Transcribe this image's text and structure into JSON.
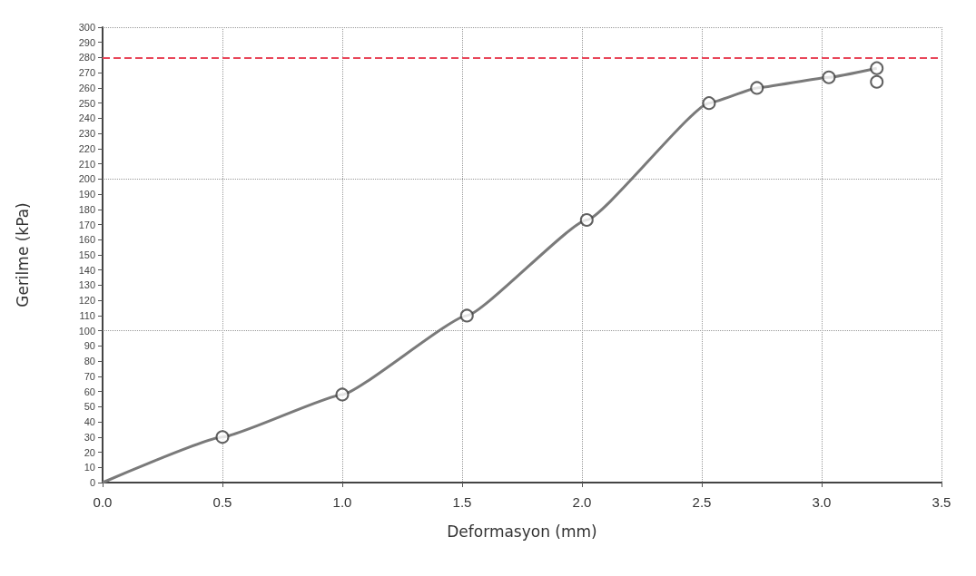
{
  "chart_data": {
    "type": "line",
    "xlabel": "Deformasyon (mm)",
    "ylabel": "Gerilme (kPa)",
    "xlim": [
      0,
      3.5
    ],
    "xticks": [
      {
        "value": 0,
        "label": "0.0"
      },
      {
        "value": 0.5,
        "label": "0.5"
      },
      {
        "value": 1,
        "label": "1.0"
      },
      {
        "value": 1.5,
        "label": "1.5"
      },
      {
        "value": 2,
        "label": "2.0"
      },
      {
        "value": 2.5,
        "label": "2.5"
      },
      {
        "value": 3,
        "label": "3.0"
      },
      {
        "value": 3.5,
        "label": "3.5"
      }
    ],
    "ylim": [
      0,
      300
    ],
    "yticks": [
      0,
      10,
      20,
      30,
      40,
      50,
      60,
      70,
      80,
      90,
      100,
      110,
      120,
      130,
      140,
      150,
      160,
      170,
      180,
      190,
      200,
      210,
      220,
      230,
      240,
      250,
      260,
      270,
      280,
      290,
      300
    ],
    "grid": true,
    "series": [
      {
        "color": "#7a7a7a",
        "marker": "none",
        "x": [
          0,
          0.5,
          1.0,
          1.52,
          2.02,
          2.53,
          2.73,
          3.03,
          3.23
        ],
        "values": [
          0,
          30,
          58,
          110,
          173,
          250,
          260,
          267,
          273
        ]
      },
      {
        "type": "scatter",
        "color": "#3a3a3a",
        "marker": "circle",
        "x": [
          0.5,
          1.0,
          1.52,
          2.02,
          2.53,
          2.73,
          3.03,
          3.23,
          3.23
        ],
        "values": [
          30,
          58,
          110,
          173,
          250,
          260,
          267,
          273,
          264
        ]
      }
    ],
    "ref_lines": [
      {
        "axis": "y",
        "value": 280,
        "color": "#e8475a",
        "line_style": "dashed"
      }
    ]
  }
}
